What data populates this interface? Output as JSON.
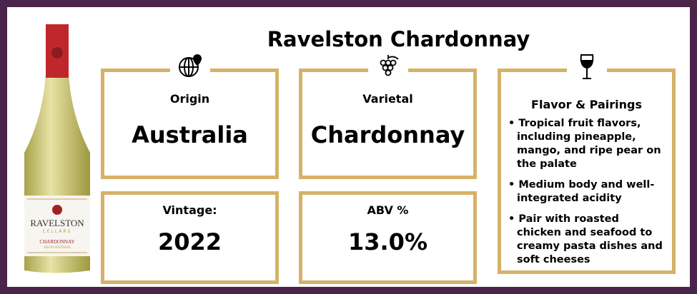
{
  "title": "Ravelston Chardonnay",
  "bottle": {
    "brand": "RAVELSTON",
    "sub": "CELLARS",
    "varietal": "CHARDONNAY",
    "region": "SOUTH AUSTRALIA"
  },
  "origin": {
    "label": "Origin",
    "value": "Australia",
    "icon": "globe-pin-icon"
  },
  "varietal": {
    "label": "Varietal",
    "value": "Chardonnay",
    "icon": "grapes-icon"
  },
  "vintage": {
    "label": "Vintage:",
    "value": "2022"
  },
  "abv": {
    "label": "ABV %",
    "value": "13.0%"
  },
  "flavor": {
    "label": "Flavor & Pairings",
    "icon": "wine-glass-icon",
    "items": [
      "Tropical fruit flavors, including pineapple, mango, and ripe pear on the palate",
      "Medium body and well-integrated acidity",
      "Pair with roasted chicken and seafood to creamy pasta dishes and soft cheeses"
    ]
  },
  "colors": {
    "frame": "#4b2449",
    "gold": "#d6b268",
    "capsule": "#c0272d",
    "wine": "#d9d28a"
  }
}
